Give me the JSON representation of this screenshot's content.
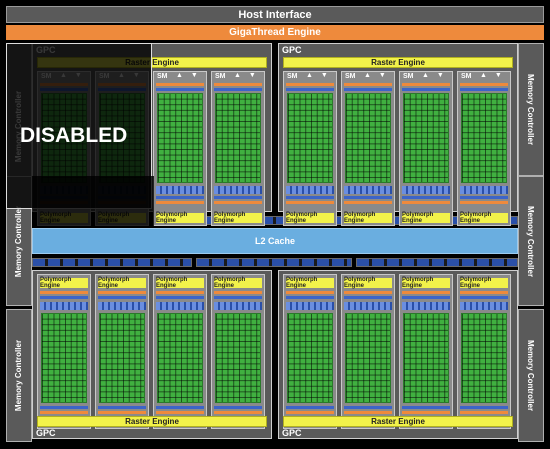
{
  "host_interface": "Host Interface",
  "gigathread": "GigaThread Engine",
  "memory_controller": "Memory Controller",
  "gpc_label": "GPC",
  "raster_engine": "Raster Engine",
  "sm_label": "SM",
  "polymorph_engine": "Polymorph Engine",
  "l2_cache": "L2 Cache",
  "disabled": "DISABLED",
  "colors": {
    "core": "#40b040",
    "raster": "#f2f24a",
    "giga": "#ee8a3c",
    "l2": "#6aaee0"
  }
}
